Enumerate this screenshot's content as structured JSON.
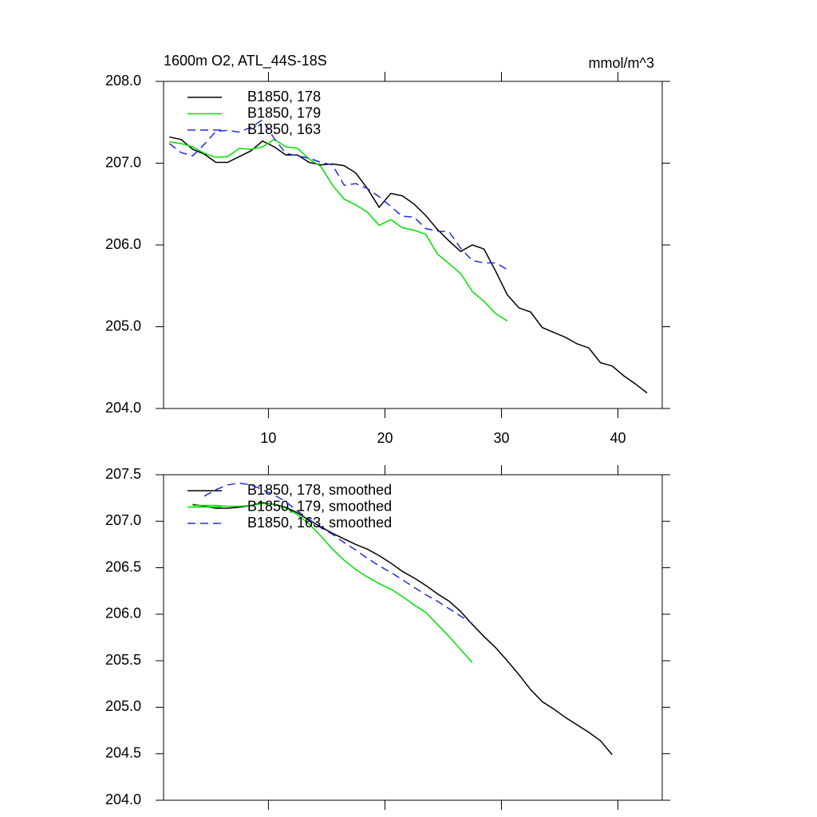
{
  "chart_data": [
    {
      "type": "line",
      "title": "1600m O2, ATL_44S-18S",
      "units": "mmol/m^3",
      "x": [
        1.5,
        2.5,
        3.5,
        4.5,
        5.5,
        6.5,
        7.5,
        8.5,
        9.5,
        10.5,
        11.5,
        12.5,
        13.5,
        14.5,
        15.5,
        16.5,
        17.5,
        18.5,
        19.5,
        20.5,
        21.5,
        22.5,
        23.5,
        24.5,
        25.5,
        26.5,
        27.5,
        28.5,
        29.5,
        30.5,
        31.5,
        32.5,
        33.5,
        34.5,
        35.5,
        36.5,
        37.5,
        38.5,
        39.5,
        40.5,
        41.5,
        42.5
      ],
      "series": [
        {
          "name": "B1850, 178",
          "color": "#000000",
          "dashed": false,
          "values": [
            207.32,
            207.29,
            207.17,
            207.11,
            207.01,
            207.01,
            207.08,
            207.15,
            207.27,
            207.2,
            207.1,
            207.1,
            207.01,
            206.98,
            206.99,
            206.97,
            206.88,
            206.69,
            206.46,
            206.63,
            206.6,
            206.5,
            206.36,
            206.19,
            206.05,
            205.92,
            206.0,
            205.95,
            205.68,
            205.39,
            205.23,
            205.18,
            204.99,
            204.93,
            204.87,
            204.79,
            204.74,
            204.56,
            204.52,
            204.4,
            204.3,
            204.19
          ]
        },
        {
          "name": "B1850, 179",
          "color": "#00e000",
          "dashed": false,
          "values": [
            207.26,
            207.24,
            207.2,
            207.12,
            207.07,
            207.08,
            207.18,
            207.17,
            207.2,
            207.29,
            207.2,
            207.18,
            207.05,
            206.96,
            206.73,
            206.56,
            206.49,
            206.4,
            206.24,
            206.31,
            206.21,
            206.18,
            206.13,
            205.89,
            205.77,
            205.65,
            205.43,
            205.31,
            205.16,
            205.07,
            null,
            null,
            null,
            null,
            null,
            null,
            null,
            null,
            null,
            null,
            null,
            null
          ]
        },
        {
          "name": "B1850, 163",
          "color": "#1f2fd8",
          "dashed": true,
          "values": [
            207.24,
            207.13,
            207.09,
            207.23,
            207.39,
            207.4,
            207.38,
            207.44,
            207.53,
            207.3,
            207.12,
            207.09,
            207.06,
            207.01,
            206.98,
            206.73,
            206.75,
            206.69,
            206.59,
            206.47,
            206.35,
            206.34,
            206.2,
            206.17,
            206.16,
            205.96,
            205.81,
            205.78,
            205.78,
            205.7,
            null,
            null,
            null,
            null,
            null,
            null,
            null,
            null,
            null,
            null,
            null,
            null
          ]
        }
      ],
      "xlim": [
        1,
        43.8
      ],
      "xticks": [
        10,
        20,
        30,
        40
      ],
      "show_xtick_labels": true,
      "ylim": [
        204,
        208
      ],
      "yticks": [
        {
          "value": 204,
          "label": "204.0"
        },
        {
          "value": 205,
          "label": "205.0"
        },
        {
          "value": 206,
          "label": "206.0"
        },
        {
          "value": 207,
          "label": "207.0"
        },
        {
          "value": 208,
          "label": "208.0"
        }
      ],
      "legend": "top-left"
    },
    {
      "type": "line",
      "x": [
        3.5,
        4.5,
        5.5,
        6.5,
        7.5,
        8.5,
        9.5,
        10.5,
        11.5,
        12.5,
        13.5,
        14.5,
        15.5,
        16.5,
        17.5,
        18.5,
        19.5,
        20.5,
        21.5,
        22.5,
        23.5,
        24.5,
        25.5,
        26.5,
        27.5,
        28.5,
        29.5,
        30.5,
        31.5,
        32.5,
        33.5,
        34.5,
        35.5,
        36.5,
        37.5,
        38.5,
        39.5
      ],
      "series": [
        {
          "name": "B1850, 178, smoothed",
          "color": "#000000",
          "dashed": false,
          "values": [
            207.18,
            207.16,
            207.14,
            207.14,
            207.15,
            207.17,
            207.2,
            207.18,
            207.15,
            207.09,
            207.01,
            206.94,
            206.87,
            206.81,
            206.75,
            206.7,
            206.63,
            206.55,
            206.46,
            206.39,
            206.31,
            206.22,
            206.14,
            206.03,
            205.89,
            205.76,
            205.64,
            205.5,
            205.35,
            205.19,
            205.06,
            204.98,
            204.89,
            204.81,
            204.73,
            204.64,
            204.49
          ]
        },
        {
          "name": "B1850, 179, smoothed",
          "color": "#00e000",
          "dashed": false,
          "values": [
            207.17,
            207.17,
            207.17,
            207.16,
            207.16,
            207.17,
            207.19,
            207.18,
            207.14,
            207.07,
            206.97,
            206.84,
            206.7,
            206.58,
            206.48,
            206.4,
            206.33,
            206.27,
            206.19,
            206.1,
            206.02,
            205.89,
            205.76,
            205.62,
            205.48,
            null,
            null,
            null,
            null,
            null,
            null,
            null,
            null,
            null,
            null,
            null,
            null
          ]
        },
        {
          "name": "B1850, 163, smoothed",
          "color": "#1f2fd8",
          "dashed": true,
          "values": [
            null,
            207.27,
            207.34,
            207.39,
            207.41,
            207.39,
            207.34,
            207.28,
            207.21,
            207.11,
            207.02,
            206.93,
            206.86,
            206.77,
            206.69,
            206.6,
            206.52,
            206.45,
            206.37,
            206.29,
            206.21,
            206.14,
            206.06,
            205.98,
            205.9,
            null,
            null,
            null,
            null,
            null,
            null,
            null,
            null,
            null,
            null,
            null,
            null
          ]
        }
      ],
      "xlim": [
        1,
        43.8
      ],
      "xticks": [
        10,
        20,
        30,
        40
      ],
      "show_xtick_labels": false,
      "ylim": [
        204,
        207.5
      ],
      "yticks": [
        {
          "value": 204,
          "label": "204.0"
        },
        204.5,
        {
          "value": 205,
          "label": "205.0"
        },
        205.5,
        {
          "value": 206,
          "label": "206.0"
        },
        206.5,
        {
          "value": 207,
          "label": "207.0"
        },
        207.5
      ],
      "legend": "top-left"
    }
  ]
}
